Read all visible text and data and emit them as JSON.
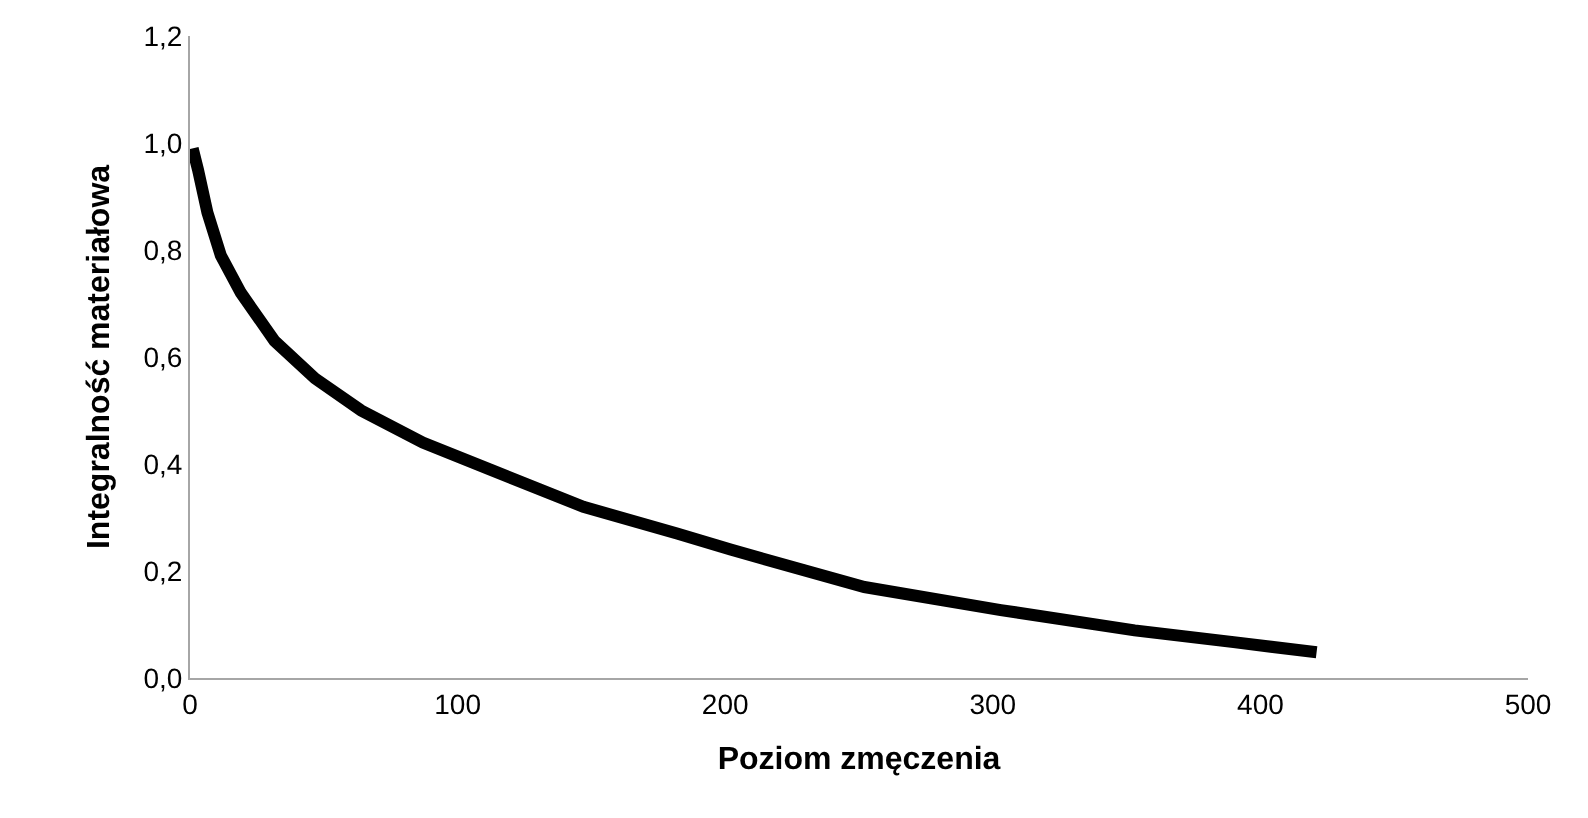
{
  "chart_data": {
    "type": "line",
    "xlabel": "Poziom zmęczenia",
    "ylabel": "Integralność materiałowa",
    "series": [
      {
        "color": "#000000",
        "x": [
          1,
          3,
          6.5,
          11.5,
          19,
          31.6,
          46.7,
          64,
          87,
          112,
          147,
          182,
          202,
          252,
          303,
          353,
          390,
          421
        ],
        "values": [
          0.99,
          0.95,
          0.87,
          0.79,
          0.72,
          0.63,
          0.56,
          0.5,
          0.44,
          0.39,
          0.32,
          0.27,
          0.24,
          0.17,
          0.127,
          0.089,
          0.067,
          0.048
        ]
      }
    ],
    "xlim": [
      0,
      500
    ],
    "xticks": [
      0,
      100,
      200,
      300,
      400,
      500
    ],
    "ylim": [
      0,
      1.2
    ],
    "yticks": [
      {
        "value": 0,
        "label": "0,0"
      },
      {
        "value": 0.2,
        "label": "0,2"
      },
      {
        "value": 0.4,
        "label": "0,4"
      },
      {
        "value": 0.6,
        "label": "0,6"
      },
      {
        "value": 0.8,
        "label": "0,8"
      },
      {
        "value": 1.0,
        "label": "1,0"
      },
      {
        "value": 1.2,
        "label": "1,2"
      }
    ],
    "grid": false,
    "line_style": "solid"
  }
}
